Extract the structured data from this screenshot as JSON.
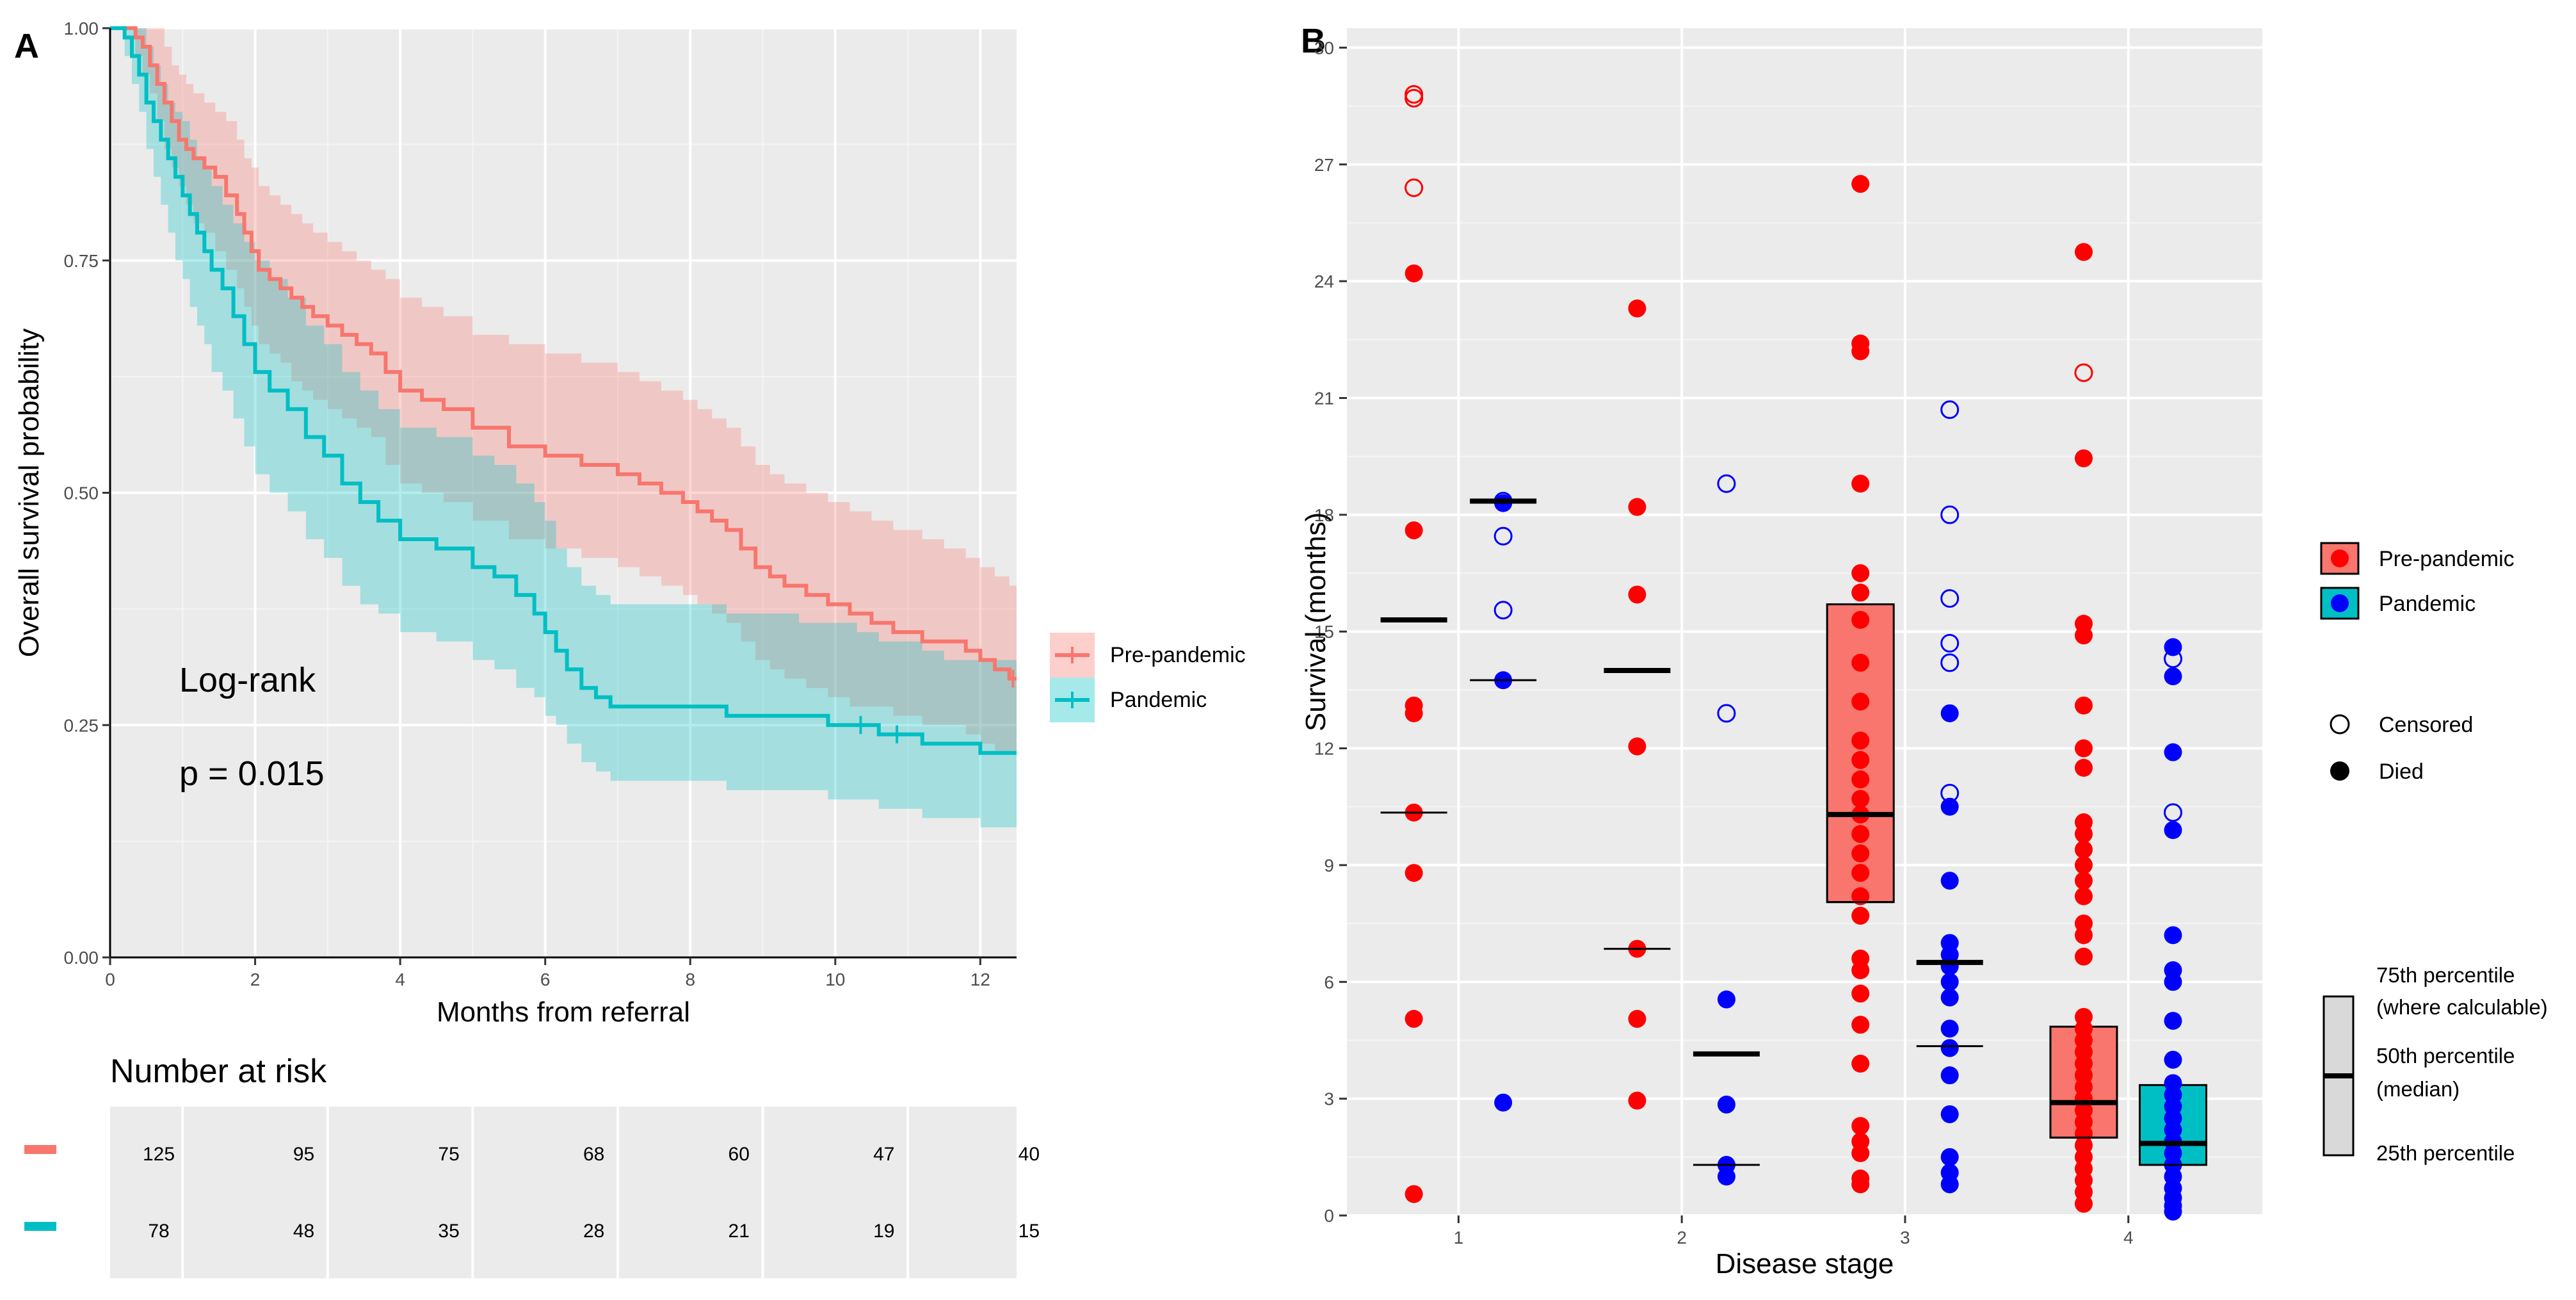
{
  "panel_a": {
    "letter": "A",
    "annotation_test": "Log-rank",
    "annotation_p": "p = 0.015",
    "risk_table_title": "Number at risk"
  },
  "panel_b": {
    "letter": "B"
  },
  "colors": {
    "prepandemic": "#F8766D",
    "pandemic": "#00BFC4",
    "prepandemic_point": "#FF0000",
    "pandemic_point": "#0000FF",
    "panel_bg": "#EBEBEB",
    "grid": "#FFFFFF"
  },
  "chart_data": [
    {
      "type": "line",
      "subtype": "kaplan-meier",
      "xlabel": "Months from referral",
      "ylabel": "Overall survival probability",
      "xlim": [
        0,
        12.5
      ],
      "ylim": [
        0,
        1
      ],
      "xticks": [
        0,
        2,
        4,
        6,
        8,
        10,
        12
      ],
      "yticks": [
        0,
        0.25,
        0.5,
        0.75,
        1
      ],
      "ytick_labels": [
        "0.00",
        "0.25",
        "0.50",
        "0.75",
        "1.00"
      ],
      "legend_position": "right",
      "series": [
        {
          "name": "Pre-pandemic",
          "x": [
            0,
            0.25,
            0.35,
            0.45,
            0.55,
            0.65,
            0.75,
            0.85,
            0.95,
            1.05,
            1.15,
            1.3,
            1.45,
            1.6,
            1.75,
            1.85,
            1.95,
            2.05,
            2.2,
            2.35,
            2.5,
            2.65,
            2.8,
            3.0,
            3.2,
            3.4,
            3.6,
            3.8,
            4.0,
            4.3,
            4.6,
            5.0,
            5.5,
            6.0,
            6.5,
            7.0,
            7.3,
            7.6,
            7.9,
            8.1,
            8.3,
            8.5,
            8.7,
            8.9,
            9.1,
            9.3,
            9.6,
            9.9,
            10.2,
            10.5,
            10.8,
            11.2,
            11.5,
            11.8,
            12.0,
            12.2,
            12.4
          ],
          "y": [
            1,
            1,
            0.99,
            0.98,
            0.96,
            0.94,
            0.92,
            0.9,
            0.88,
            0.87,
            0.86,
            0.85,
            0.84,
            0.82,
            0.8,
            0.78,
            0.76,
            0.74,
            0.73,
            0.72,
            0.71,
            0.7,
            0.69,
            0.68,
            0.67,
            0.66,
            0.65,
            0.63,
            0.61,
            0.6,
            0.59,
            0.57,
            0.55,
            0.54,
            0.53,
            0.52,
            0.51,
            0.5,
            0.49,
            0.48,
            0.47,
            0.46,
            0.44,
            0.42,
            0.41,
            0.4,
            0.39,
            0.38,
            0.37,
            0.36,
            0.35,
            0.34,
            0.34,
            0.33,
            0.32,
            0.31,
            0.3
          ],
          "lower": [
            1,
            1,
            0.97,
            0.95,
            0.93,
            0.9,
            0.87,
            0.85,
            0.83,
            0.81,
            0.79,
            0.78,
            0.76,
            0.74,
            0.72,
            0.7,
            0.68,
            0.66,
            0.65,
            0.64,
            0.62,
            0.61,
            0.6,
            0.59,
            0.58,
            0.57,
            0.56,
            0.53,
            0.51,
            0.5,
            0.49,
            0.47,
            0.45,
            0.44,
            0.43,
            0.42,
            0.41,
            0.4,
            0.39,
            0.38,
            0.37,
            0.36,
            0.34,
            0.32,
            0.31,
            0.3,
            0.29,
            0.28,
            0.27,
            0.27,
            0.26,
            0.25,
            0.25,
            0.24,
            0.23,
            0.22,
            0.22
          ],
          "upper": [
            1,
            1,
            1,
            1,
            1,
            1,
            0.98,
            0.96,
            0.95,
            0.94,
            0.93,
            0.92,
            0.91,
            0.9,
            0.88,
            0.86,
            0.85,
            0.83,
            0.82,
            0.81,
            0.8,
            0.79,
            0.78,
            0.77,
            0.76,
            0.75,
            0.74,
            0.73,
            0.71,
            0.7,
            0.69,
            0.67,
            0.66,
            0.65,
            0.64,
            0.63,
            0.62,
            0.61,
            0.6,
            0.59,
            0.58,
            0.57,
            0.55,
            0.53,
            0.52,
            0.51,
            0.5,
            0.49,
            0.48,
            0.47,
            0.46,
            0.45,
            0.44,
            0.43,
            0.42,
            0.41,
            0.4
          ]
        },
        {
          "name": "Pandemic",
          "x": [
            0,
            0.2,
            0.3,
            0.4,
            0.5,
            0.6,
            0.7,
            0.8,
            0.9,
            1.0,
            1.1,
            1.2,
            1.3,
            1.4,
            1.55,
            1.7,
            1.85,
            2.0,
            2.2,
            2.45,
            2.7,
            2.95,
            3.2,
            3.45,
            3.7,
            4.0,
            4.5,
            5.0,
            5.3,
            5.6,
            5.85,
            6.0,
            6.15,
            6.3,
            6.5,
            6.7,
            6.9,
            7.2,
            7.6,
            8.0,
            8.5,
            9.0,
            9.5,
            9.9,
            10.3,
            10.6,
            10.9,
            11.2,
            11.5,
            12.0,
            12.5
          ],
          "y": [
            1,
            0.99,
            0.97,
            0.95,
            0.92,
            0.9,
            0.88,
            0.86,
            0.84,
            0.82,
            0.8,
            0.78,
            0.76,
            0.74,
            0.72,
            0.69,
            0.66,
            0.63,
            0.61,
            0.59,
            0.56,
            0.54,
            0.51,
            0.49,
            0.47,
            0.45,
            0.44,
            0.42,
            0.41,
            0.39,
            0.37,
            0.35,
            0.33,
            0.31,
            0.29,
            0.28,
            0.27,
            0.27,
            0.27,
            0.27,
            0.26,
            0.26,
            0.26,
            0.25,
            0.25,
            0.24,
            0.24,
            0.23,
            0.23,
            0.22,
            0.22
          ],
          "lower": [
            1,
            0.97,
            0.94,
            0.91,
            0.87,
            0.84,
            0.81,
            0.78,
            0.75,
            0.73,
            0.7,
            0.68,
            0.66,
            0.63,
            0.61,
            0.58,
            0.55,
            0.52,
            0.5,
            0.48,
            0.45,
            0.43,
            0.4,
            0.38,
            0.37,
            0.35,
            0.34,
            0.32,
            0.31,
            0.29,
            0.28,
            0.26,
            0.25,
            0.23,
            0.21,
            0.2,
            0.19,
            0.19,
            0.19,
            0.19,
            0.18,
            0.18,
            0.18,
            0.17,
            0.17,
            0.16,
            0.16,
            0.15,
            0.15,
            0.14,
            0.14
          ],
          "upper": [
            1,
            1,
            1,
            1,
            0.98,
            0.96,
            0.94,
            0.92,
            0.91,
            0.9,
            0.88,
            0.86,
            0.85,
            0.83,
            0.81,
            0.79,
            0.77,
            0.75,
            0.73,
            0.71,
            0.68,
            0.66,
            0.63,
            0.61,
            0.59,
            0.57,
            0.56,
            0.54,
            0.53,
            0.51,
            0.49,
            0.47,
            0.44,
            0.42,
            0.4,
            0.39,
            0.38,
            0.38,
            0.38,
            0.38,
            0.37,
            0.37,
            0.36,
            0.36,
            0.35,
            0.34,
            0.34,
            0.33,
            0.32,
            0.32,
            0.31
          ]
        }
      ],
      "censor_marks": [
        {
          "series": "Pandemic",
          "x": [
            10.35,
            10.85
          ]
        },
        {
          "series": "Pre-pandemic",
          "x": [
            12.45
          ]
        }
      ],
      "risk_table": {
        "title": "Number at risk",
        "times": [
          0,
          2,
          4,
          6,
          8,
          10,
          12
        ],
        "rows": [
          {
            "name": "Pre-pandemic",
            "values": [
              "125",
              "95",
              "75",
              "68",
              "60",
              "47",
              "40"
            ]
          },
          {
            "name": "Pandemic",
            "values": [
              "78",
              "48",
              "35",
              "28",
              "21",
              "19",
              "15"
            ]
          }
        ]
      }
    },
    {
      "type": "scatter",
      "subtype": "box-and-dot",
      "xlabel": "Disease stage",
      "ylabel": "Survival (months)",
      "categories": [
        "1",
        "2",
        "3",
        "4"
      ],
      "xlim": [
        0.5,
        4.6
      ],
      "ylim": [
        0,
        30.5
      ],
      "yticks": [
        0,
        3,
        6,
        9,
        12,
        15,
        18,
        21,
        24,
        27,
        30
      ],
      "legend": {
        "group": [
          "Pre-pandemic",
          "Pandemic"
        ],
        "status": [
          "Censored",
          "Died"
        ],
        "box_key": {
          "top": "75th percentile",
          "top_sub": "(where calculable)",
          "mid": "50th percentile",
          "mid_sub": "(median)",
          "bottom": "25th percentile"
        }
      },
      "offset": 0.2,
      "groups": [
        {
          "stage": 1,
          "series": "Pre-pandemic",
          "median": 15.3,
          "q1": 10.35,
          "q3": null,
          "box": false,
          "died": [
            24.2,
            17.6,
            13.1,
            12.9,
            10.35,
            8.8,
            5.05,
            0.55
          ],
          "censored": [
            28.8,
            28.7,
            26.4
          ]
        },
        {
          "stage": 1,
          "series": "Pandemic",
          "median": 18.35,
          "q1": 13.75,
          "q3": null,
          "box": false,
          "died": [
            18.3,
            13.75,
            2.9
          ],
          "censored": [
            17.45,
            15.55,
            18.35
          ]
        },
        {
          "stage": 2,
          "series": "Pre-pandemic",
          "median": 14.0,
          "q1": 6.85,
          "q3": null,
          "box": false,
          "died": [
            23.3,
            18.2,
            15.95,
            12.05,
            6.85,
            5.05,
            2.95
          ],
          "censored": []
        },
        {
          "stage": 2,
          "series": "Pandemic",
          "median": 4.15,
          "q1": 1.3,
          "q3": null,
          "box": false,
          "died": [
            5.55,
            2.85,
            1.3,
            1.0
          ],
          "censored": [
            18.8,
            12.9
          ]
        },
        {
          "stage": 3,
          "series": "Pre-pandemic",
          "median": 10.3,
          "q1": 8.05,
          "q3": 15.7,
          "box": true,
          "died": [
            26.5,
            22.4,
            22.2,
            18.8,
            16.5,
            16.0,
            15.3,
            14.2,
            13.2,
            12.2,
            11.7,
            11.2,
            10.7,
            10.3,
            9.8,
            9.3,
            8.8,
            8.2,
            7.7,
            6.6,
            6.3,
            5.7,
            4.9,
            3.9,
            2.3,
            1.9,
            1.6,
            0.95,
            0.8
          ],
          "censored": []
        },
        {
          "stage": 3,
          "series": "Pandemic",
          "median": 6.5,
          "q1": 4.35,
          "q3": null,
          "box": false,
          "died": [
            12.9,
            10.5,
            8.6,
            7.0,
            6.7,
            6.4,
            6.0,
            5.6,
            4.8,
            4.3,
            3.6,
            2.6,
            1.5,
            1.1,
            0.8
          ],
          "censored": [
            20.7,
            18.0,
            15.85,
            14.7,
            14.2,
            10.85
          ]
        },
        {
          "stage": 4,
          "series": "Pre-pandemic",
          "median": 2.9,
          "q1": 2.0,
          "q3": 4.85,
          "box": true,
          "died": [
            24.75,
            19.45,
            15.2,
            14.9,
            13.1,
            12.0,
            11.5,
            10.1,
            9.8,
            9.4,
            9.0,
            8.6,
            8.2,
            7.5,
            7.2,
            6.65,
            5.1,
            4.8,
            4.5,
            4.2,
            3.9,
            3.6,
            3.3,
            3.0,
            2.7,
            2.4,
            2.1,
            1.8,
            1.5,
            1.2,
            0.9,
            0.6,
            0.3
          ],
          "censored": [
            21.65
          ]
        },
        {
          "stage": 4,
          "series": "Pandemic",
          "median": 1.85,
          "q1": 1.3,
          "q3": 3.35,
          "box": true,
          "died": [
            14.6,
            13.85,
            11.9,
            9.9,
            7.2,
            6.3,
            6.0,
            5.0,
            4.0,
            3.4,
            3.1,
            2.8,
            2.5,
            2.2,
            1.9,
            1.6,
            1.3,
            1.0,
            0.7,
            0.45,
            0.25,
            0.1
          ],
          "censored": [
            14.3,
            10.35
          ]
        }
      ]
    }
  ]
}
